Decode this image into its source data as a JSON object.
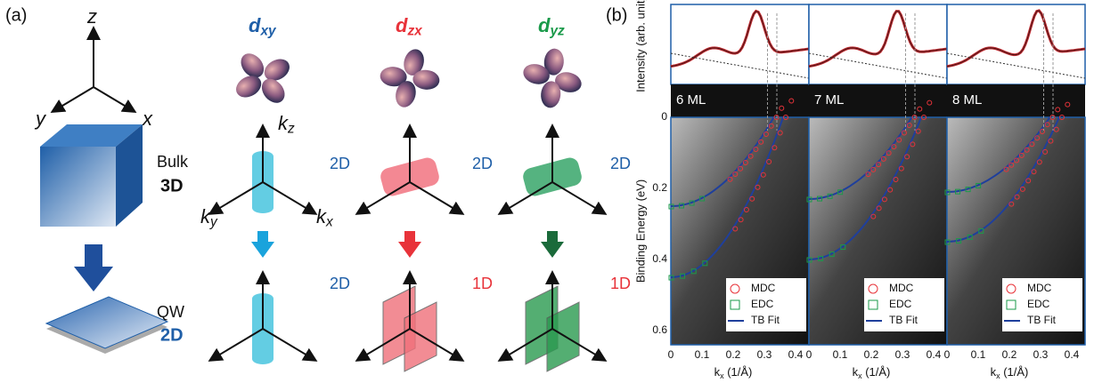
{
  "panel_a": {
    "label": "(a)",
    "axes": {
      "z": "z",
      "y": "y",
      "x": "x"
    },
    "bulk": {
      "name": "Bulk",
      "dim": "3D"
    },
    "qw": {
      "name": "QW",
      "dim": "2D"
    },
    "k_axes": {
      "kz": {
        "base": "k",
        "sub": "z"
      },
      "ky": {
        "base": "k",
        "sub": "y"
      },
      "kx": {
        "base": "k",
        "sub": "x"
      }
    },
    "orbitals": [
      {
        "name": {
          "base": "d",
          "sub": "xy"
        },
        "bulk_dim": "2D",
        "qw_dim": "2D"
      },
      {
        "name": {
          "base": "d",
          "sub": "zx"
        },
        "bulk_dim": "2D",
        "qw_dim": "1D"
      },
      {
        "name": {
          "base": "d",
          "sub": "yz"
        },
        "bulk_dim": "2D",
        "qw_dim": "1D"
      }
    ]
  },
  "panel_b": {
    "label": "(b)",
    "intensity_label": "Intensity (arb. unit)",
    "y_label": "Binding Energy (eV)",
    "y_ticks": [
      "0",
      "0.2",
      "0.4",
      "0.6"
    ],
    "x_ticks": [
      "0",
      "0.1",
      "0.2",
      "0.3",
      "0.4"
    ],
    "x_label": {
      "base": "k",
      "sub": "x",
      "unit": " (1/Å)"
    },
    "panels": [
      "6 ML",
      "7 ML",
      "8 ML"
    ],
    "legend": [
      "MDC",
      "EDC",
      "TB Fit"
    ]
  }
}
